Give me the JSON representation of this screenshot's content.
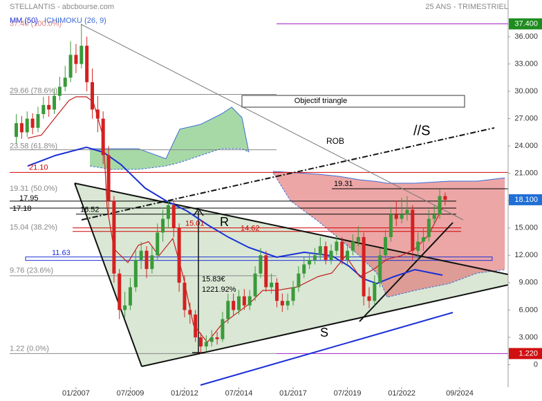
{
  "chart_data": {
    "type": "candlestick",
    "title": "STELLANTIS - abcbourse.com",
    "subtitle": "25 ANS - TRIMESTRIEL",
    "up_color": "#3a9a3a",
    "down_color": "#d42020",
    "x": [
      2004.25,
      2004.5,
      2004.75,
      2005.0,
      2005.25,
      2005.5,
      2005.75,
      2006.0,
      2006.25,
      2006.5,
      2006.75,
      2007.0,
      2007.25,
      2007.5,
      2007.75,
      2008.0,
      2008.25,
      2008.5,
      2008.75,
      2009.0,
      2009.25,
      2009.5,
      2009.75,
      2010.0,
      2010.25,
      2010.5,
      2010.75,
      2011.0,
      2011.25,
      2011.5,
      2011.75,
      2012.0,
      2012.25,
      2012.5,
      2012.75,
      2013.0,
      2013.25,
      2013.5,
      2013.75,
      2014.0,
      2014.25,
      2014.5,
      2014.75,
      2015.0,
      2015.25,
      2015.5,
      2015.75,
      2016.0,
      2016.25,
      2016.5,
      2016.75,
      2017.0,
      2017.25,
      2017.5,
      2017.75,
      2018.0,
      2018.25,
      2018.5,
      2018.75,
      2019.0,
      2019.25,
      2019.5,
      2019.75,
      2020.0,
      2020.25,
      2020.5,
      2020.75,
      2021.0,
      2021.25,
      2021.5,
      2021.75,
      2022.0,
      2022.25,
      2022.5,
      2022.75,
      2023.0,
      2023.25,
      2023.5,
      2023.75,
      2024.0
    ],
    "open": [
      25,
      26.5,
      25.5,
      27,
      26,
      27.5,
      28.5,
      28,
      29.5,
      30.5,
      31.5,
      34,
      33,
      35,
      31,
      28,
      27,
      23,
      18,
      10,
      6,
      6.5,
      8.5,
      11.5,
      12.5,
      10.5,
      12,
      14.5,
      16,
      17.5,
      15,
      9,
      6,
      5.5,
      3,
      2,
      2.5,
      3,
      2.8,
      5,
      7,
      6,
      7.5,
      6.5,
      7.5,
      10,
      12,
      8.5,
      9,
      7,
      6.5,
      7,
      8.5,
      10,
      11,
      11.5,
      12,
      13,
      11.5,
      12.5,
      13.5,
      11.5,
      12.5,
      13.5,
      14,
      7.5,
      7,
      9,
      12,
      14,
      16.5,
      16,
      16.5,
      17,
      12.5,
      13.5,
      14,
      16,
      16.5,
      18.5
    ],
    "high": [
      27.5,
      27.3,
      27.8,
      27.6,
      28.3,
      29.4,
      29.5,
      30.3,
      31.6,
      32.8,
      35.5,
      35.2,
      37.4,
      36,
      32.5,
      29.5,
      27.8,
      24,
      18.5,
      10.5,
      8,
      9.5,
      12.5,
      13.5,
      13,
      13,
      15.5,
      17,
      18,
      18,
      15.5,
      9.8,
      6.8,
      6,
      3.5,
      3.2,
      3.8,
      3.6,
      5.8,
      7.8,
      7.8,
      8.2,
      8.3,
      8.2,
      10.8,
      12.8,
      12.5,
      10,
      9.5,
      7.8,
      7.8,
      9.2,
      10.8,
      11.8,
      12.3,
      12.8,
      14,
      13.5,
      13.2,
      14.2,
      14,
      13.2,
      14.3,
      15.2,
      14.5,
      8.5,
      9.8,
      12.8,
      14.8,
      17.3,
      18,
      18.3,
      18.5,
      17.5,
      14.5,
      15,
      17,
      17.5,
      19.3,
      18.9
    ],
    "low": [
      24.2,
      24.8,
      25,
      25.3,
      25.5,
      27,
      27.2,
      27.5,
      29,
      30,
      31,
      32,
      32.5,
      30,
      27,
      25.5,
      22,
      16.5,
      9,
      5,
      5.2,
      6,
      8,
      10.5,
      9.5,
      10,
      11.5,
      13.5,
      15,
      14,
      8,
      5.2,
      4.5,
      2.5,
      1.22,
      1.5,
      2,
      2.2,
      2.5,
      4.5,
      5.4,
      5.5,
      6,
      6,
      7,
      9.5,
      8,
      7.8,
      6.3,
      5.8,
      6,
      6.5,
      8,
      9.5,
      10.5,
      11,
      11.5,
      11,
      11,
      12,
      11,
      11,
      12,
      13,
      6.5,
      6.2,
      6.5,
      8.5,
      11.5,
      13.5,
      15.2,
      15.5,
      15.8,
      11.5,
      11.5,
      12.5,
      13.5,
      15.5,
      16,
      17.5
    ],
    "close": [
      26.5,
      25.5,
      27,
      26,
      27.5,
      28.5,
      28,
      29.5,
      30.5,
      31.5,
      34,
      33,
      35,
      31,
      28,
      27,
      23,
      18,
      10,
      6,
      6.5,
      8.5,
      11.5,
      12.5,
      10.5,
      12,
      14.5,
      16,
      17.5,
      15,
      9,
      6,
      5.5,
      3,
      2,
      2.5,
      3,
      2.8,
      5,
      7,
      6,
      7.5,
      6.5,
      7.5,
      10,
      12,
      8.5,
      9,
      7,
      6.5,
      7,
      8.5,
      10,
      11,
      11.5,
      12,
      13,
      11.5,
      12.5,
      13.5,
      11.5,
      12.5,
      13.5,
      14,
      7.5,
      7,
      9,
      12,
      14,
      16.5,
      16,
      16.5,
      17,
      12.5,
      13.5,
      14,
      16,
      16.5,
      18.5,
      18.1
    ],
    "xlim": [
      2003.5,
      2026.9
    ],
    "xticks": [
      {
        "value": 2007,
        "label": "01/2007"
      },
      {
        "value": 2009.5,
        "label": "07/2009"
      },
      {
        "value": 2012,
        "label": "01/2012"
      },
      {
        "value": 2014.5,
        "label": "07/2014"
      },
      {
        "value": 2017,
        "label": "01/2017"
      },
      {
        "value": 2019.5,
        "label": "07/2019"
      },
      {
        "value": 2022,
        "label": "01/2022"
      },
      {
        "value": 2024.67,
        "label": "09/2024"
      }
    ],
    "ylim": [
      -2.47,
      40.02
    ],
    "yticks": [
      0,
      {
        "value": 3,
        "label": "3.000"
      },
      {
        "value": 6,
        "label": "6.000"
      },
      {
        "value": 9,
        "label": "9.000"
      },
      {
        "value": 12,
        "label": "12.000"
      },
      {
        "value": 15,
        "label": "15.000"
      },
      {
        "value": 18,
        "label": "18.000"
      },
      {
        "value": 21,
        "label": "21.000"
      },
      {
        "value": 24,
        "label": "24.000"
      },
      {
        "value": 27,
        "label": "27.000"
      },
      {
        "value": 30,
        "label": "30.000"
      },
      {
        "value": 33,
        "label": "33.000"
      },
      {
        "value": 36,
        "label": "36.000"
      }
    ],
    "series": [
      {
        "name": "MM (50)",
        "color": "#1a2fd6",
        "x": [
          2004.77,
          2006.04,
          2007.48,
          2008.27,
          2009.07,
          2010.18,
          2011.14,
          2012.1,
          2013.05,
          2014.01,
          2014.96,
          2016.24,
          2017.51,
          2018.78,
          2019.58,
          2020.22,
          2020.85,
          2021.65,
          2022.61,
          2023.88
        ],
        "values": [
          21.8,
          22.95,
          23.86,
          23.3,
          21.96,
          19.38,
          18.0,
          16.88,
          15.36,
          14.0,
          12.86,
          11.8,
          12.33,
          11.95,
          10.8,
          9.44,
          8.91,
          9.67,
          10.43,
          9.82
        ]
      },
      {
        "name": "ICHIMOKU (26, 9)",
        "color": "#c41e1e",
        "x": [
          2004.77,
          2005.41,
          2006.04,
          2006.68,
          2007.0,
          2007.48,
          2007.8,
          2008.27,
          2008.43,
          2008.75,
          2009.39,
          2009.87,
          2010.34,
          2010.82,
          2011.46,
          2011.94,
          2012.41,
          2013.05,
          2013.69,
          2014.32,
          2014.96,
          2015.6,
          2016.24,
          2017.19,
          2018.15,
          2018.78,
          2019.42,
          2020.06,
          2020.69,
          2021.33,
          2021.97,
          2022.61,
          2023.24,
          2023.88
        ],
        "values": [
          24.85,
          25.2,
          27.1,
          29.0,
          29.4,
          29.4,
          28.8,
          24.85,
          17.26,
          12.7,
          11.2,
          13.1,
          13.5,
          11.95,
          13.85,
          9.67,
          4.36,
          2.46,
          4.36,
          5.5,
          6.64,
          8.15,
          8.15,
          8.53,
          9.67,
          10.05,
          11.95,
          9.67,
          10.43,
          11.57,
          11.95,
          12.7,
          14.22,
          17.26
        ],
        "clouds": [
          {
            "color": "#6cbf6c",
            "x": [
              2007.64,
              2008.59,
              2009.87,
              2011.14,
              2011.78,
              2012.73,
              2013.69,
              2014.17,
              2014.64,
              2014.96
            ],
            "upper": [
              23.7,
              23.7,
              23.7,
              22.6,
              25.85,
              26.36,
              27.5,
              28.26,
              27.12,
              23.33
            ],
            "lower": [
              21.81,
              21.43,
              21.43,
              21.81,
              22.19,
              22.95,
              23.71,
              23.71,
              23.71,
              23.33
            ]
          },
          {
            "color": "#e06a6a",
            "x": [
              2016.08,
              2016.87,
              2018.15,
              2019.1,
              2020.06,
              2020.85,
              2021.33,
              2022.61,
              2024.2,
              2025.47,
              2026.75
            ],
            "upper": [
              21.2,
              21.1,
              20.9,
              20.67,
              20.29,
              20.1,
              19.91,
              19.91,
              20.14,
              20.14,
              20.5
            ],
            "lower": [
              21.05,
              18.0,
              15.74,
              13.85,
              11.95,
              10.05,
              7.4,
              8.15,
              8.91,
              10.05,
              10.43
            ]
          }
        ]
      }
    ],
    "levels": [
      {
        "value": 37.4,
        "label": "37.40 (100.0%)",
        "color": "#d98080"
      },
      {
        "value": 29.66,
        "label": "29.66 (78.6%)",
        "color": "#888888"
      },
      {
        "value": 23.58,
        "label": "23.58 (61.8%)",
        "color": "#888888"
      },
      {
        "value": 19.31,
        "label": "19.31 (50.0%)",
        "color": "#888888"
      },
      {
        "value": 15.04,
        "label": "15.04 (38.2%)",
        "color": "#888888"
      },
      {
        "value": 9.76,
        "label": "9.76 (23.6%)",
        "color": "#888888"
      },
      {
        "value": 1.22,
        "label": "1.22 (0.0%)",
        "color": "#888888"
      },
      {
        "value": 21.1,
        "label": "21.10",
        "color": "#d00000"
      },
      {
        "value": 17.95,
        "label": "17.95",
        "color": "#000000"
      },
      {
        "value": 17.18,
        "label": "17.18",
        "color": "#000000"
      },
      {
        "value": 16.52,
        "label": "16.52",
        "color": "#000000"
      },
      {
        "value": 11.63,
        "label": "11.63",
        "color": "#1a2fd6"
      },
      {
        "value": 15.01,
        "label": "15.01",
        "color": "#d00000"
      },
      {
        "value": 14.62,
        "label": "14.62",
        "color": "#d00000"
      },
      {
        "value": 19.31,
        "label": "19.31",
        "color": "#000000"
      }
    ],
    "price_markers": [
      {
        "value": 37.4,
        "label": "37.400",
        "color": "#1e8c1e"
      },
      {
        "value": 18.1,
        "label": "18.100",
        "color": "#1f6fd6"
      },
      {
        "value": 1.22,
        "label": "1.220",
        "color": "#d01010"
      }
    ],
    "annotations": {
      "target": "Objectif triangle",
      "rob": "ROB",
      "parallel_support": "//S",
      "resistance": "R",
      "support": "S",
      "gain_amount": "15.83€",
      "gain_pct": "1221.92%"
    }
  }
}
